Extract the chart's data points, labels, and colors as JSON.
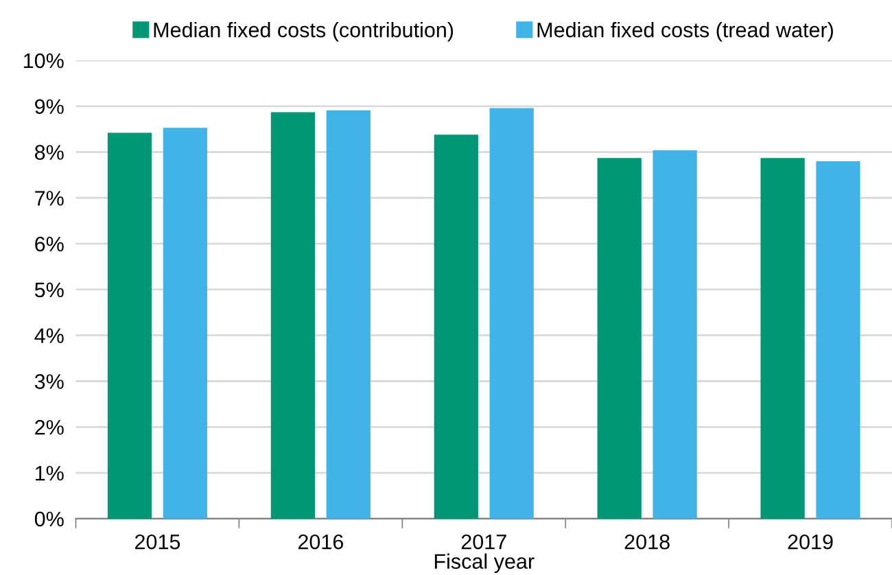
{
  "chart_data": {
    "type": "bar",
    "xlabel": "Fiscal year",
    "categories": [
      "2015",
      "2016",
      "2017",
      "2018",
      "2019"
    ],
    "series": [
      {
        "name": "Median fixed costs (contribution)",
        "color": "#009874",
        "values": [
          8.42,
          8.87,
          8.38,
          7.87,
          7.87
        ]
      },
      {
        "name": "Median fixed costs (tread water)",
        "color": "#41b3e6",
        "values": [
          8.53,
          8.91,
          8.96,
          8.04,
          7.8
        ]
      }
    ],
    "ylim": [
      0,
      10
    ],
    "yticks": [
      {
        "value": 0,
        "label": "0%"
      },
      {
        "value": 1,
        "label": "1%"
      },
      {
        "value": 2,
        "label": "2%"
      },
      {
        "value": 3,
        "label": "3%"
      },
      {
        "value": 4,
        "label": "4%"
      },
      {
        "value": 5,
        "label": "5%"
      },
      {
        "value": 6,
        "label": "6%"
      },
      {
        "value": 7,
        "label": "7%"
      },
      {
        "value": 8,
        "label": "8%"
      },
      {
        "value": 9,
        "label": "9%"
      },
      {
        "value": 10,
        "label": "10%"
      }
    ],
    "grid": "y",
    "legend": "top"
  }
}
